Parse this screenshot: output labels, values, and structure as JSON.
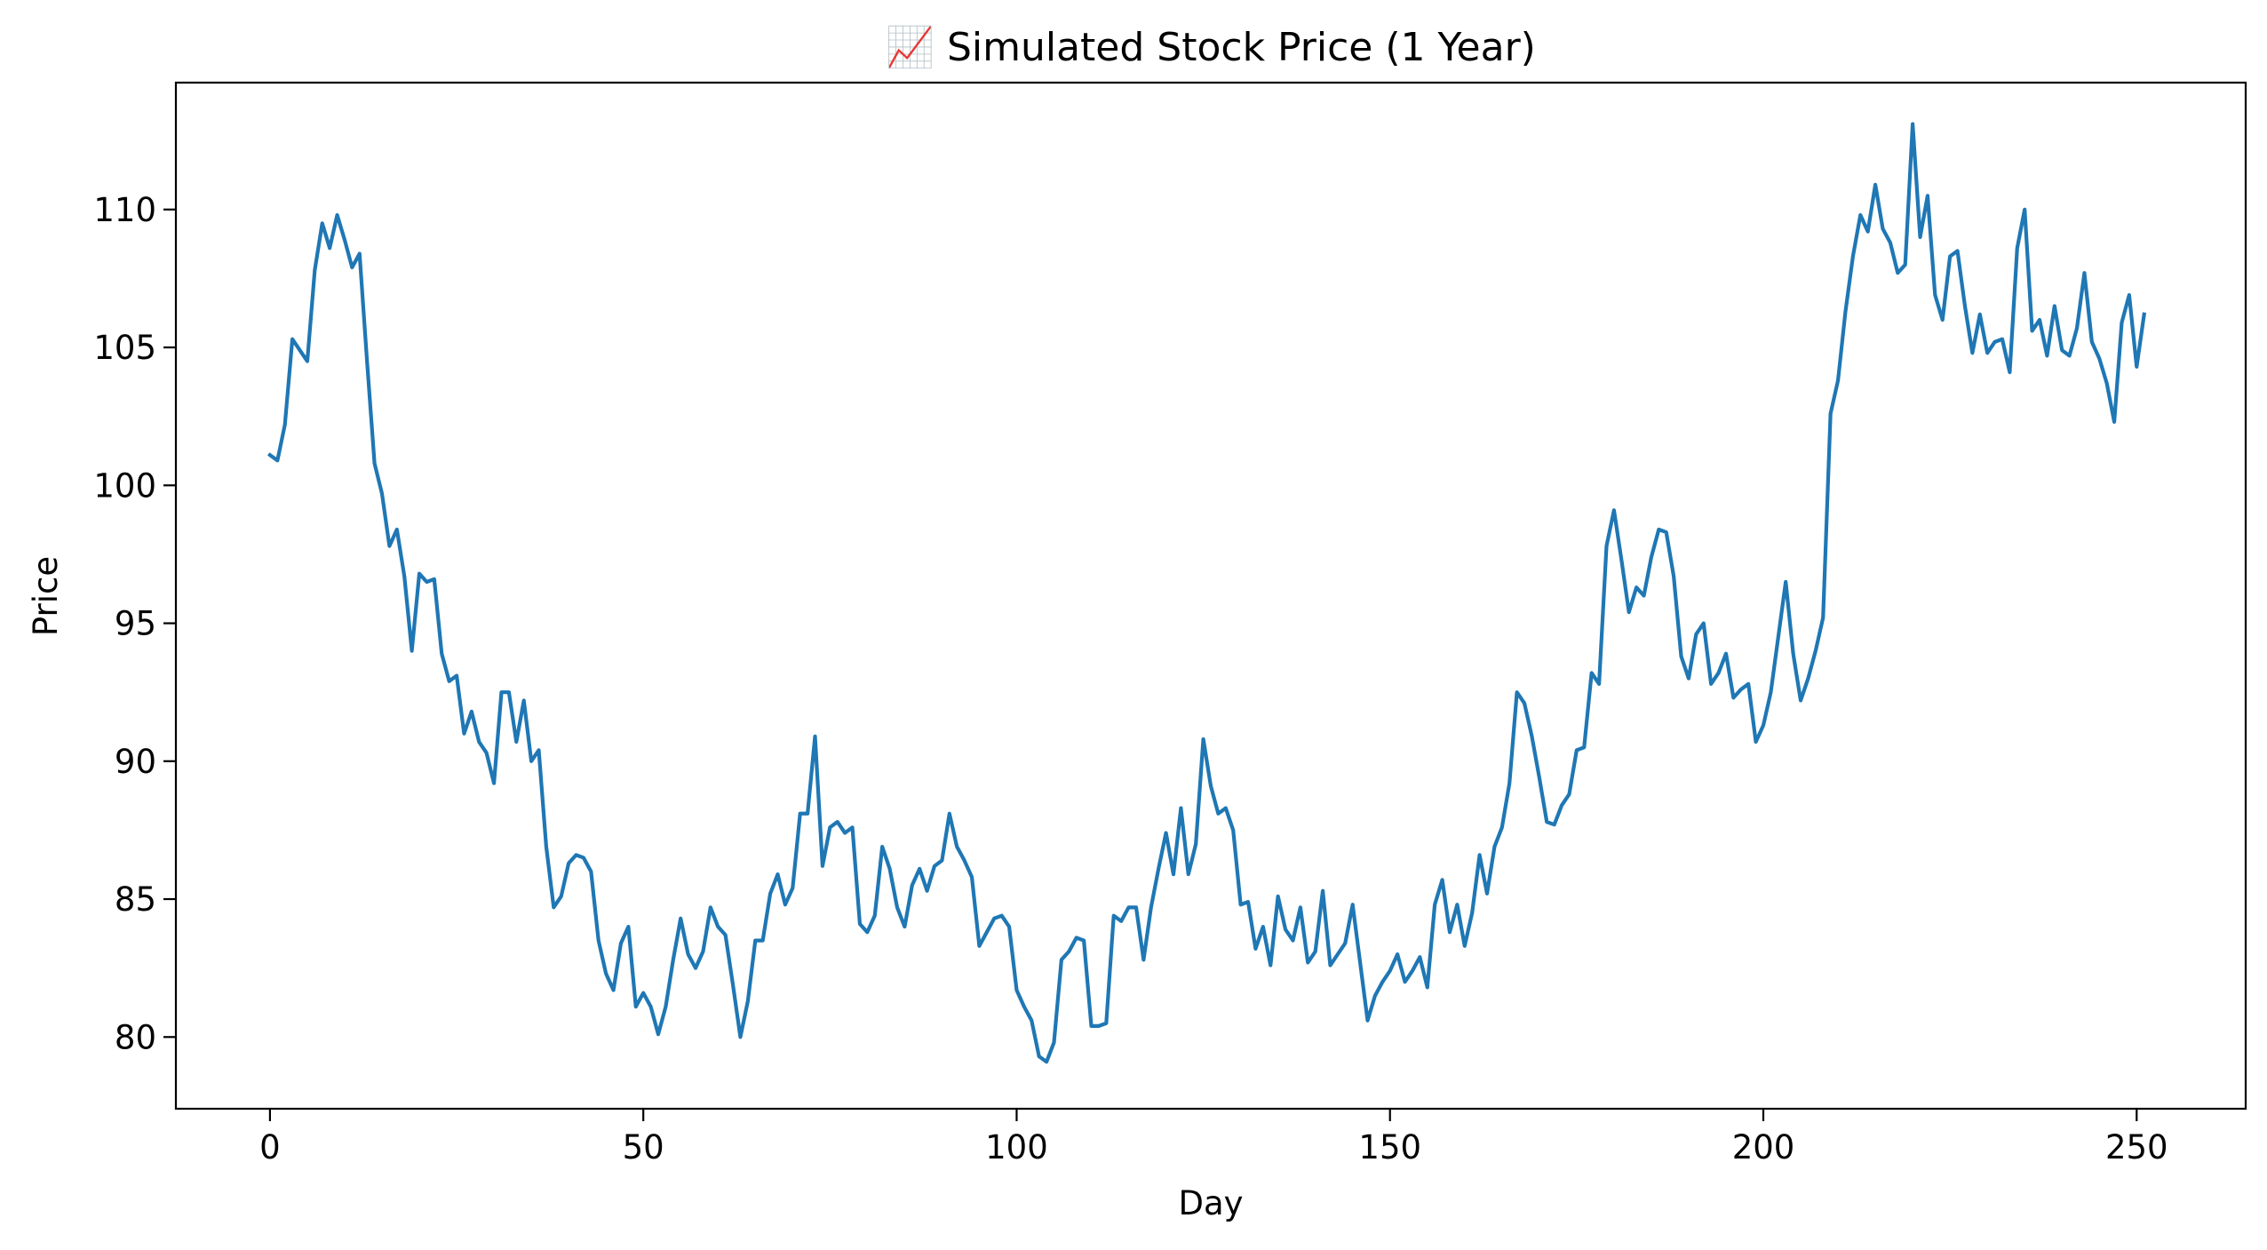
{
  "chart_data": {
    "type": "line",
    "title": "📈 Simulated Stock Price (1 Year)",
    "xlabel": "Day",
    "ylabel": "Price",
    "xlim": [
      -12.6,
      264.6
    ],
    "ylim": [
      77.4,
      114.6
    ],
    "grid": false,
    "legend": "none",
    "x_ticks": [
      0,
      50,
      100,
      150,
      200,
      250
    ],
    "y_ticks": [
      80,
      85,
      90,
      95,
      100,
      105,
      110
    ],
    "x_tick_labels": [
      "0",
      "50",
      "100",
      "150",
      "200",
      "250"
    ],
    "y_tick_labels": [
      "80",
      "85",
      "90",
      "95",
      "100",
      "105",
      "110"
    ],
    "colors": {
      "line": "#1f77b4",
      "axes": "#000000",
      "background": "#ffffff"
    },
    "series": [
      {
        "x_start": 0,
        "x_step": 1,
        "values": [
          101.1,
          100.9,
          102.2,
          105.3,
          104.9,
          104.5,
          107.8,
          109.5,
          108.6,
          109.8,
          108.9,
          107.9,
          108.4,
          104.5,
          100.8,
          99.7,
          97.8,
          98.4,
          96.7,
          94.0,
          96.8,
          96.5,
          96.6,
          93.9,
          92.9,
          93.1,
          91.0,
          91.8,
          90.7,
          90.3,
          89.2,
          92.5,
          92.5,
          90.7,
          92.2,
          90.0,
          90.4,
          86.9,
          84.7,
          85.1,
          86.3,
          86.6,
          86.5,
          86.0,
          83.5,
          82.3,
          81.7,
          83.4,
          84.0,
          81.1,
          81.6,
          81.1,
          80.1,
          81.1,
          82.8,
          84.3,
          83.0,
          82.5,
          83.1,
          84.7,
          84.0,
          83.7,
          81.9,
          80.0,
          81.3,
          83.5,
          83.5,
          85.2,
          85.9,
          84.8,
          85.4,
          88.1,
          88.1,
          90.9,
          86.2,
          87.6,
          87.8,
          87.4,
          87.6,
          84.1,
          83.8,
          84.4,
          86.9,
          86.1,
          84.7,
          84.0,
          85.5,
          86.1,
          85.3,
          86.2,
          86.4,
          88.1,
          86.9,
          86.4,
          85.8,
          83.3,
          83.8,
          84.3,
          84.4,
          84.0,
          81.7,
          81.1,
          80.6,
          79.3,
          79.1,
          79.8,
          82.8,
          83.1,
          83.6,
          83.5,
          80.4,
          80.4,
          80.5,
          84.4,
          84.2,
          84.7,
          84.7,
          82.8,
          84.7,
          86.1,
          87.4,
          85.9,
          88.3,
          85.9,
          87.0,
          90.8,
          89.1,
          88.1,
          88.3,
          87.5,
          84.8,
          84.9,
          83.2,
          84.0,
          82.6,
          85.1,
          83.9,
          83.5,
          84.7,
          82.7,
          83.1,
          85.3,
          82.6,
          83.0,
          83.4,
          84.8,
          82.7,
          80.6,
          81.5,
          82.0,
          82.4,
          83.0,
          82.0,
          82.4,
          82.9,
          81.8,
          84.8,
          85.7,
          83.8,
          84.8,
          83.3,
          84.5,
          86.6,
          85.2,
          86.9,
          87.6,
          89.2,
          92.5,
          92.1,
          90.9,
          89.4,
          87.8,
          87.7,
          88.4,
          88.8,
          90.4,
          90.5,
          93.2,
          92.8,
          97.8,
          99.1,
          97.3,
          95.4,
          96.3,
          96.0,
          97.4,
          98.4,
          98.3,
          96.7,
          93.8,
          93.0,
          94.6,
          95.0,
          92.8,
          93.2,
          93.9,
          92.3,
          92.6,
          92.8,
          90.7,
          91.3,
          92.5,
          94.5,
          96.5,
          93.9,
          92.2,
          93.0,
          94.0,
          95.2,
          102.6,
          103.8,
          106.3,
          108.3,
          109.8,
          109.2,
          110.9,
          109.3,
          108.8,
          107.7,
          108.0,
          113.1,
          109.0,
          110.5,
          106.9,
          106.0,
          108.3,
          108.5,
          106.5,
          104.8,
          106.2,
          104.8,
          105.2,
          105.3,
          104.1,
          108.6,
          110.0,
          105.6,
          106.0,
          104.7,
          106.5,
          104.9,
          104.7,
          105.7,
          107.7,
          105.2,
          104.6,
          103.7,
          102.3,
          105.9,
          106.9,
          104.3,
          106.2
        ]
      }
    ]
  }
}
